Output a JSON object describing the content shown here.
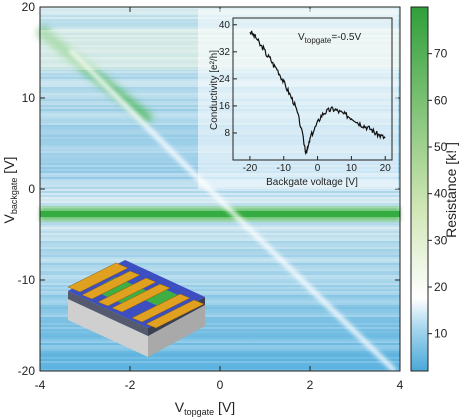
{
  "chart_data": [
    {
      "type": "heatmap",
      "title": "",
      "xlabel": "V",
      "xlabel_sub": "topgate",
      "xlabel_unit": " [V]",
      "ylabel": "V",
      "ylabel_sub": "backgate",
      "ylabel_unit": " [V]",
      "xlim": [
        -4,
        4
      ],
      "ylim": [
        -20,
        20
      ],
      "x_ticks": [
        "-4",
        "-2",
        "0",
        "2",
        "4"
      ],
      "y_ticks": [
        "20",
        "10",
        "0",
        "-10",
        "-20"
      ],
      "colorbar": {
        "label": "Resistance [k! ]",
        "range": [
          2,
          80
        ],
        "ticks": [
          "70",
          "60",
          "50",
          "40",
          "30",
          "20",
          "10"
        ],
        "colors": [
          "#4aa8d8",
          "#a8d8ee",
          "#ffffff",
          "#cfe6b4",
          "#34b03c"
        ]
      },
      "features": {
        "dirac_line_backgate": -3.2,
        "diagonal_start": [
          -3.8,
          18
        ],
        "diagonal_end": [
          3.6,
          -20
        ]
      }
    },
    {
      "type": "line",
      "title": "",
      "annotation": "V",
      "annotation_sub": "topgate",
      "annotation_value": "=-0.5V",
      "xlabel": "Backgate voltage [V]",
      "ylabel": "Conductivity [e²/h]",
      "xlim": [
        -25,
        22
      ],
      "ylim": [
        0,
        42
      ],
      "x_ticks": [
        "-20",
        "-10",
        "0",
        "10",
        "20"
      ],
      "y_ticks": [
        "40",
        "32",
        "24",
        "16",
        "8"
      ],
      "series": [
        {
          "x": [
            -20,
            -19,
            -18,
            -17,
            -16,
            -15,
            -14,
            -13,
            -12,
            -11,
            -10,
            -9,
            -8,
            -7,
            -6,
            -5,
            -4,
            -3.5,
            -3,
            -2.5,
            -2,
            -1,
            0,
            1,
            2,
            3,
            4,
            5,
            6,
            7,
            8,
            9,
            10,
            11,
            12,
            13,
            14,
            15,
            16,
            17,
            18,
            19,
            20
          ],
          "y": [
            38,
            37,
            36,
            34,
            33,
            31,
            30,
            28,
            27,
            25,
            23,
            21,
            19,
            17,
            14,
            10,
            5,
            2.5,
            3,
            5,
            7,
            9,
            11,
            13,
            14,
            14.5,
            15,
            15,
            14.5,
            14,
            13.5,
            13,
            12.5,
            12,
            11,
            10.5,
            10,
            9.5,
            9,
            8,
            7.5,
            7,
            6.5
          ]
        }
      ]
    }
  ],
  "inset_device": {
    "caption": ""
  }
}
